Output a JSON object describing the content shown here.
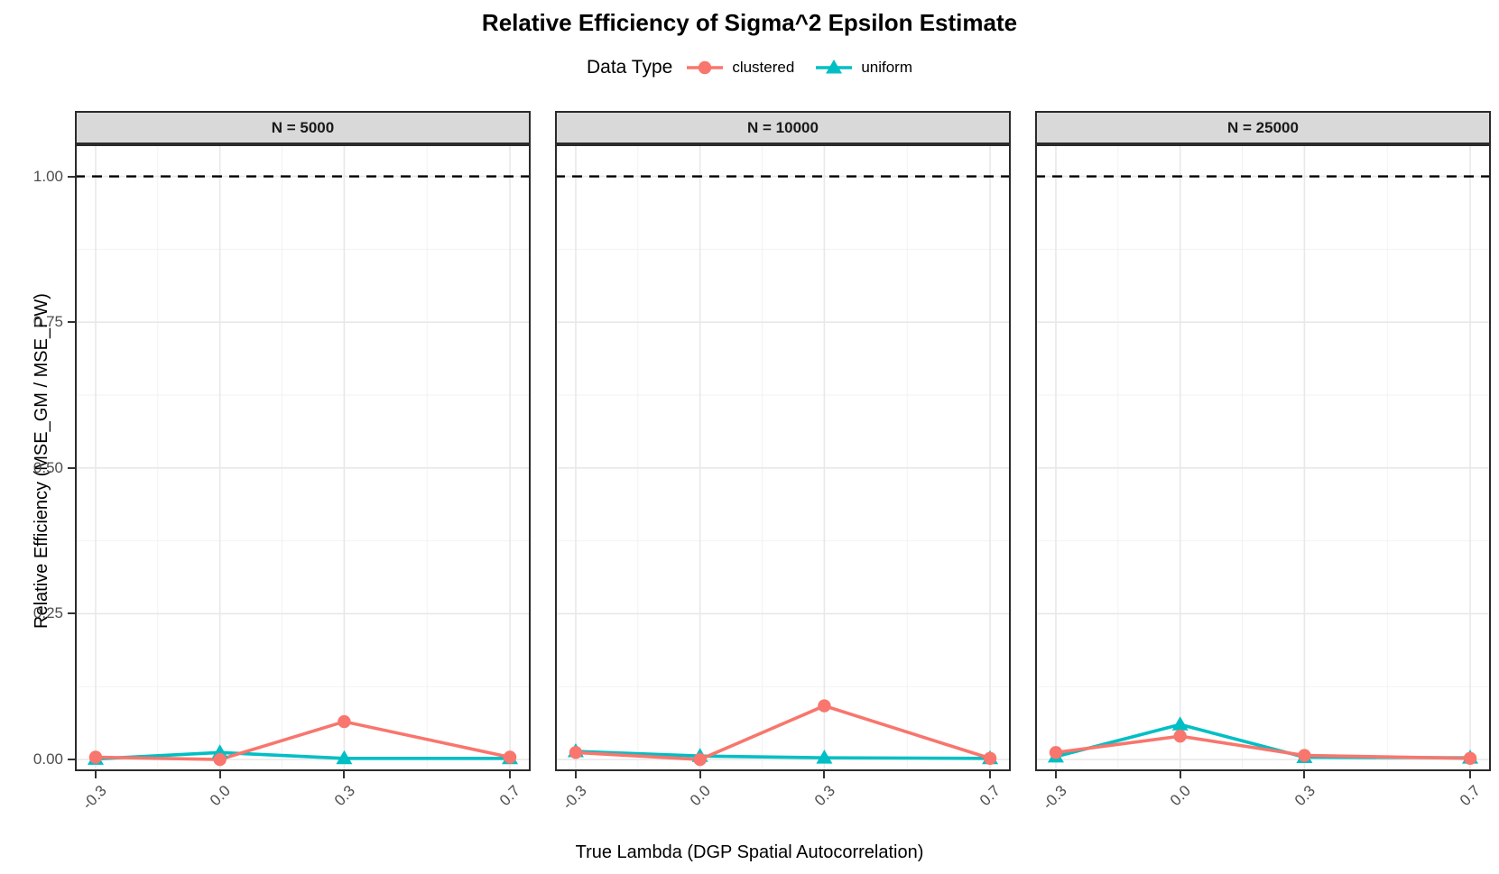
{
  "title": "Relative Efficiency of Sigma^2 Epsilon Estimate",
  "legend": {
    "title": "Data Type",
    "items": [
      {
        "label": "clustered",
        "color": "#F8766D",
        "shape": "circle"
      },
      {
        "label": "uniform",
        "color": "#00BFC4",
        "shape": "triangle"
      }
    ]
  },
  "chart_data": {
    "type": "line",
    "x": [
      -0.3,
      0.0,
      0.3,
      0.7
    ],
    "x_tick_labels": [
      "-0.3",
      "0.0",
      "0.3",
      "0.7"
    ],
    "y_ticks": [
      0.0,
      0.25,
      0.5,
      0.75,
      1.0
    ],
    "y_tick_labels": [
      "0.00",
      "0.25",
      "0.50",
      "0.75",
      "1.00"
    ],
    "y_minor_ticks": [
      0.125,
      0.375,
      0.625,
      0.875
    ],
    "x_minor_ticks": [
      -0.15,
      0.15,
      0.5
    ],
    "xlim": [
      -0.35,
      0.75
    ],
    "ylim": [
      -0.02,
      1.055
    ],
    "xlabel": "True Lambda (DGP Spatial Autocorrelation)",
    "ylabel": "Relative Efficiency (MSE_GM / MSE_PW)",
    "grid": true,
    "legend_position": "top",
    "reference_line": {
      "y": 1.0,
      "style": "dashed",
      "color": "#000000"
    },
    "facets": [
      {
        "label": "N = 5000",
        "series": [
          {
            "name": "clustered",
            "values": [
              0.004,
              0.0,
              0.065,
              0.004
            ]
          },
          {
            "name": "uniform",
            "values": [
              0.001,
              0.012,
              0.002,
              0.002
            ]
          }
        ]
      },
      {
        "label": "N = 10000",
        "series": [
          {
            "name": "clustered",
            "values": [
              0.012,
              0.0,
              0.092,
              0.002
            ]
          },
          {
            "name": "uniform",
            "values": [
              0.014,
              0.006,
              0.003,
              0.002
            ]
          }
        ]
      },
      {
        "label": "N = 25000",
        "series": [
          {
            "name": "clustered",
            "values": [
              0.012,
              0.04,
              0.007,
              0.002
            ]
          },
          {
            "name": "uniform",
            "values": [
              0.005,
              0.06,
              0.004,
              0.003
            ]
          }
        ]
      }
    ]
  },
  "colors": {
    "strip_background": "#D9D9D9",
    "panel_border": "#2b2b2b",
    "grid_major": "#E8E8E8",
    "grid_minor": "#F2F2F2",
    "tick_text": "#4D4D4D"
  }
}
